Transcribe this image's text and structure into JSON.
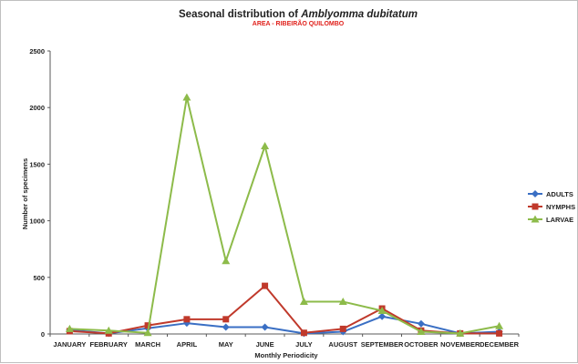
{
  "chart_data": {
    "type": "line",
    "title_prefix": "Seasonal distribution of ",
    "title_species": "Amblyomma dubitatum",
    "subtitle": "AREA - RIBEIRÃO QUILOMBO",
    "xlabel": "Monthly Periodicity",
    "ylabel": "Number of specimens",
    "ylim": [
      0,
      2500
    ],
    "yticks": [
      "0",
      "500",
      "1000",
      "1500",
      "2000",
      "2500"
    ],
    "categories": [
      "JANUARY",
      "FEBRUARY",
      "MARCH",
      "APRIL",
      "MAY",
      "JUNE",
      "JULY",
      "AUGUST",
      "SEPTEMBER",
      "OCTOBER",
      "NOVEMBER",
      "DECEMBER"
    ],
    "grid": false,
    "legend_position": "right",
    "series": [
      {
        "name": "ADULTS",
        "color": "#3a6fc4",
        "marker": "diamond",
        "values": [
          35,
          5,
          50,
          95,
          60,
          60,
          5,
          20,
          155,
          90,
          5,
          20
        ]
      },
      {
        "name": "NYMPHS",
        "color": "#c0392b",
        "marker": "square",
        "values": [
          25,
          5,
          75,
          130,
          130,
          425,
          10,
          45,
          225,
          30,
          5,
          5
        ]
      },
      {
        "name": "LARVAE",
        "color": "#8dbb4a",
        "marker": "triangle",
        "values": [
          45,
          30,
          10,
          2090,
          645,
          1660,
          285,
          285,
          205,
          20,
          5,
          70
        ]
      }
    ]
  }
}
